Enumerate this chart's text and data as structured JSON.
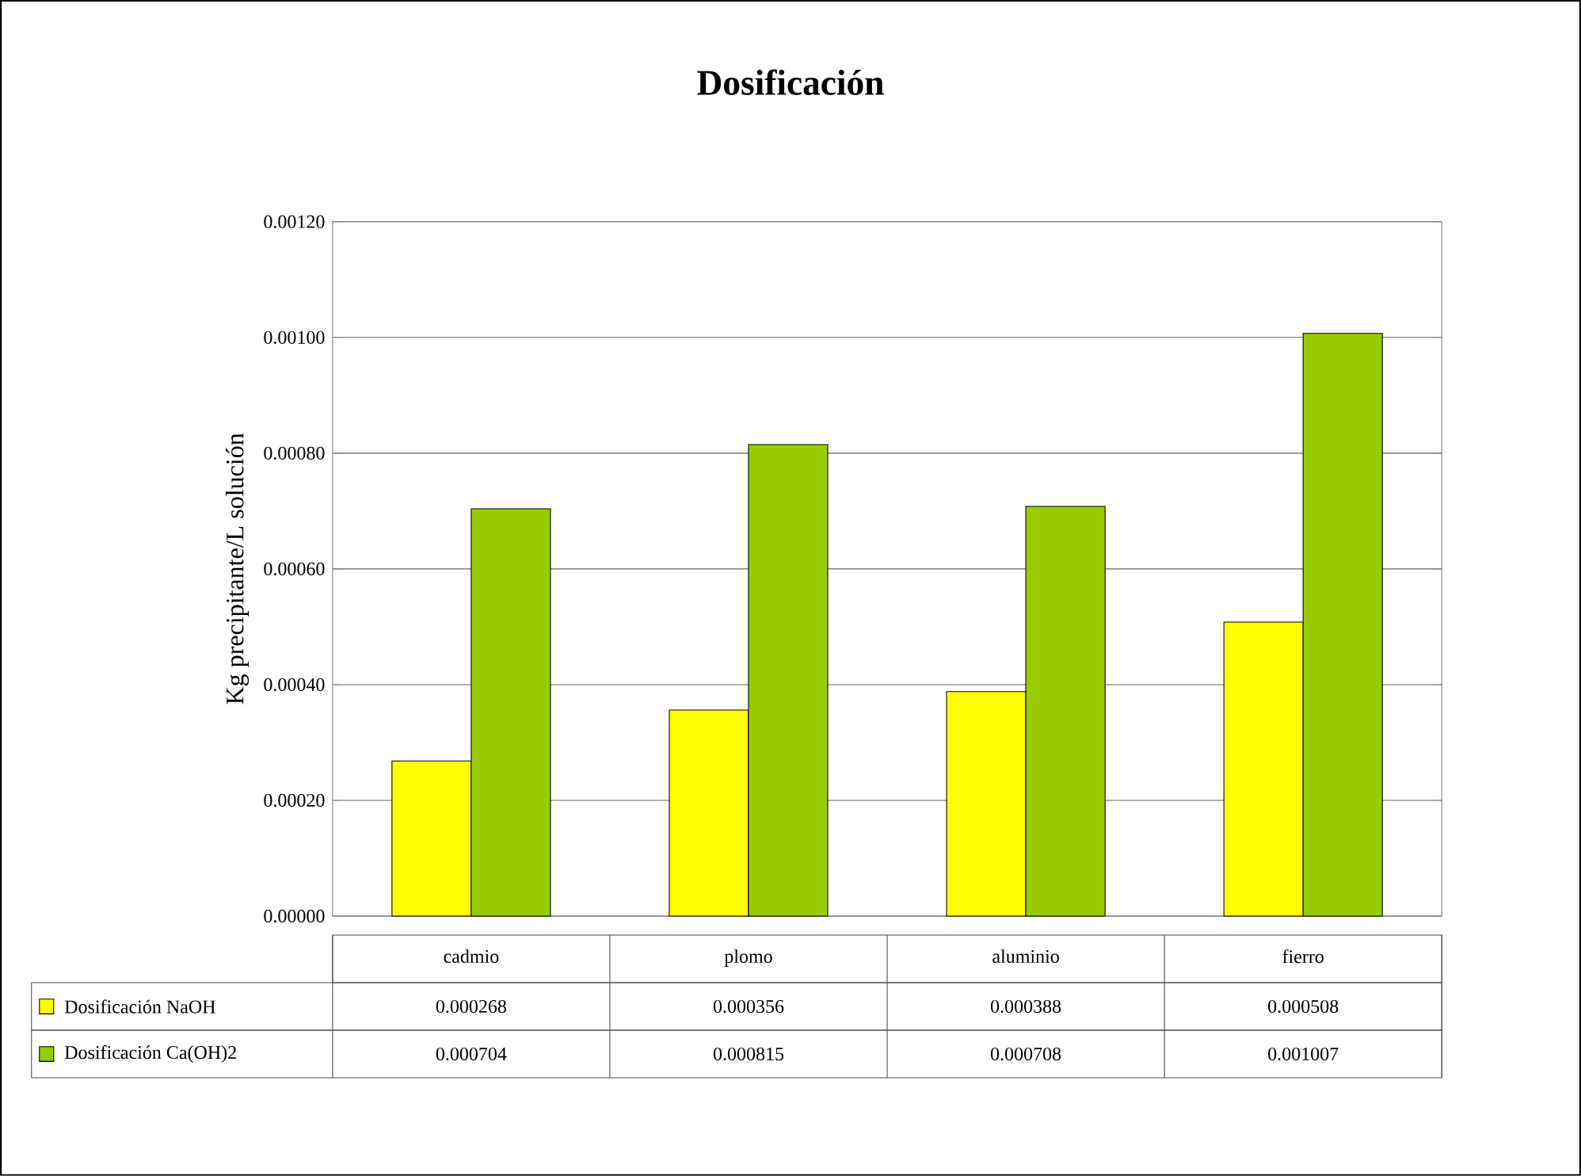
{
  "chart_data": {
    "type": "bar",
    "title": "Dosificación",
    "ylabel": "Kg precipitante/L solución",
    "categories": [
      "cadmio",
      "plomo",
      "aluminio",
      "fierro"
    ],
    "series": [
      {
        "name": "Dosificación NaOH",
        "color": "#ffff00",
        "values": [
          0.000268,
          0.000356,
          0.000388,
          0.000508
        ]
      },
      {
        "name": "Dosificación Ca(OH)2",
        "color": "#99cc00",
        "values": [
          0.000704,
          0.000815,
          0.000708,
          0.001007
        ]
      }
    ],
    "ylim": [
      0,
      0.0012
    ],
    "yticks": [
      {
        "value": 0,
        "label": "0.00000"
      },
      {
        "value": 0.0002,
        "label": "0.00020"
      },
      {
        "value": 0.0004,
        "label": "0.00040"
      },
      {
        "value": 0.0006,
        "label": "0.00060"
      },
      {
        "value": 0.0008,
        "label": "0.00080"
      },
      {
        "value": 0.001,
        "label": "0.00100"
      },
      {
        "value": 0.0012,
        "label": "0.00120"
      }
    ],
    "grid": "y",
    "legend": "bottom",
    "data_labels": true
  }
}
